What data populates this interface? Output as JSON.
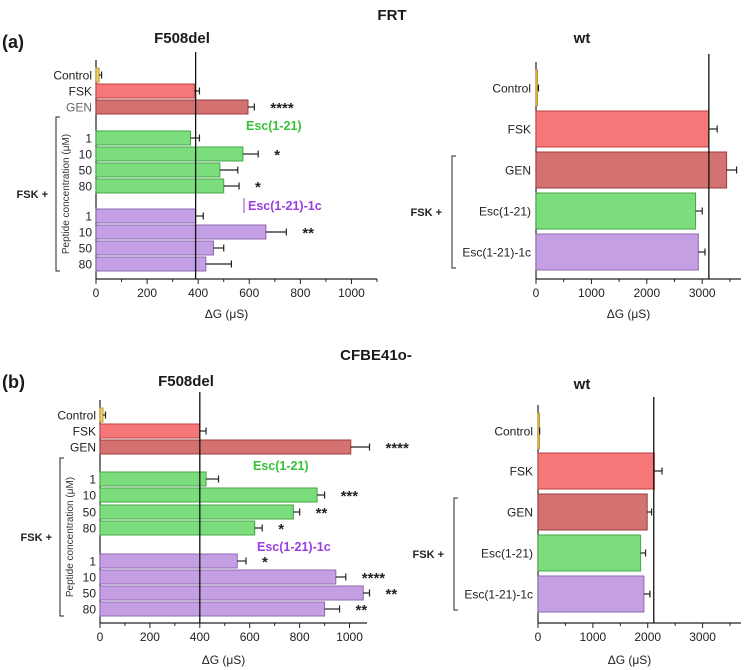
{
  "figure": {
    "row_a_title": "FRT",
    "row_b_title": "CFBE41o-",
    "row_a_letter": "(a)",
    "row_b_letter": "(b)",
    "x_axis_label": "ΔG (μS)",
    "group_label": "FSK +",
    "peptide_axis_label": "Peptide concentration  (μM)",
    "colors": {
      "control": "#f2d264",
      "fsk": "#f57777",
      "gen": "#d47272",
      "esc": "#7bdd7b",
      "esc1c": "#c59fe4",
      "esc_text": "#36c236",
      "esc1c_text": "#9a3ee0"
    }
  },
  "chart_data": [
    {
      "id": "a-left",
      "type": "bar",
      "orientation": "horizontal",
      "title": "F508del",
      "xlabel": "ΔG (μS)",
      "xlim": [
        0,
        1100
      ],
      "xticks": [
        0,
        200,
        400,
        600,
        800,
        1000
      ],
      "reference_line": 390,
      "categories": [
        "Control",
        "FSK",
        "GEN",
        "1",
        "10",
        "50",
        "80",
        "1",
        "10",
        "50",
        "80"
      ],
      "groups": [
        "control",
        "fsk",
        "gen",
        "esc",
        "esc",
        "esc",
        "esc",
        "esc1c",
        "esc1c",
        "esc1c",
        "esc1c"
      ],
      "values": [
        12,
        385,
        595,
        370,
        575,
        485,
        500,
        390,
        665,
        460,
        430
      ],
      "errors": [
        10,
        20,
        25,
        35,
        60,
        70,
        60,
        30,
        80,
        40,
        100
      ],
      "significance": [
        "",
        "",
        "****",
        "",
        "*",
        "",
        "*",
        "",
        "**",
        "",
        ""
      ],
      "annotations": [
        "Esc(1-21)",
        "Esc(1-21)-1c"
      ]
    },
    {
      "id": "a-right",
      "type": "bar",
      "orientation": "horizontal",
      "title": "wt",
      "xlabel": "ΔG (μS)",
      "xlim": [
        0,
        3700
      ],
      "xticks": [
        0,
        1000,
        2000,
        3000
      ],
      "reference_line": 3120,
      "categories": [
        "Control",
        "FSK",
        "GEN",
        "Esc(1-21)",
        "Esc(1-21)-1c"
      ],
      "groups": [
        "control",
        "fsk",
        "gen",
        "esc",
        "esc1c"
      ],
      "values": [
        25,
        3120,
        3440,
        2880,
        2930
      ],
      "errors": [
        20,
        150,
        180,
        120,
        120
      ],
      "significance": [
        "",
        "",
        "",
        "",
        ""
      ]
    },
    {
      "id": "b-left",
      "type": "bar",
      "orientation": "horizontal",
      "title": "F508del",
      "xlabel": "ΔG (μS)",
      "xlim": [
        0,
        1070
      ],
      "xticks": [
        0,
        200,
        400,
        600,
        800,
        1000
      ],
      "reference_line": 400,
      "categories": [
        "Control",
        "FSK",
        "GEN",
        "1",
        "10",
        "50",
        "80",
        "1",
        "10",
        "50",
        "80"
      ],
      "groups": [
        "control",
        "fsk",
        "gen",
        "esc",
        "esc",
        "esc",
        "esc",
        "esc1c",
        "esc1c",
        "esc1c",
        "esc1c"
      ],
      "values": [
        12,
        400,
        1005,
        425,
        870,
        775,
        620,
        550,
        945,
        1055,
        900
      ],
      "errors": [
        10,
        25,
        75,
        50,
        30,
        25,
        30,
        35,
        40,
        25,
        60
      ],
      "significance": [
        "",
        "",
        "****",
        "",
        "***",
        "**",
        "*",
        "*",
        "****",
        "**",
        "**"
      ],
      "annotations": [
        "Esc(1-21)",
        "Esc(1-21)-1c"
      ]
    },
    {
      "id": "b-right",
      "type": "bar",
      "orientation": "horizontal",
      "title": "wt",
      "xlabel": "ΔG (μS)",
      "xlim": [
        0,
        3700
      ],
      "xticks": [
        0,
        1000,
        2000,
        3000
      ],
      "reference_line": 2110,
      "categories": [
        "Control",
        "FSK",
        "GEN",
        "Esc(1-21)",
        "Esc(1-21)-1c"
      ],
      "groups": [
        "control",
        "fsk",
        "gen",
        "esc",
        "esc1c"
      ],
      "values": [
        15,
        2120,
        1990,
        1870,
        1930
      ],
      "errors": [
        15,
        140,
        80,
        90,
        110
      ],
      "significance": [
        "",
        "",
        "",
        "",
        ""
      ]
    }
  ]
}
